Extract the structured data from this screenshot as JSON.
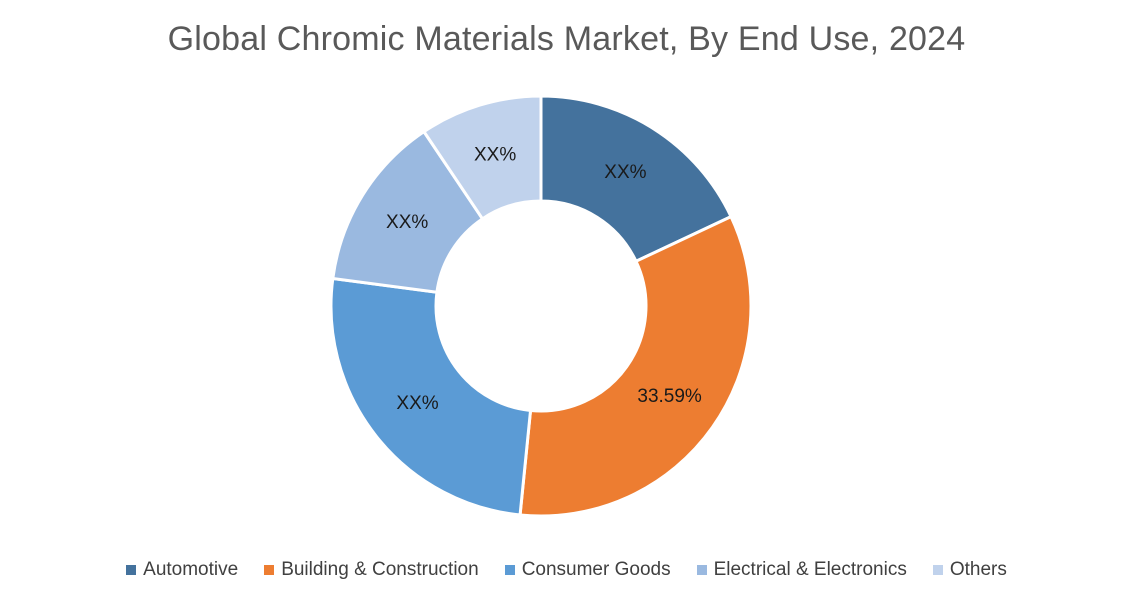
{
  "chart_data": {
    "type": "pie",
    "style": "donut",
    "title": "Global Chromic Materials Market, By End Use, 2024",
    "legend_position": "bottom",
    "slices": [
      {
        "label": "Automotive",
        "value": 18.0,
        "data_label": "XX%",
        "color": "#44729D"
      },
      {
        "label": "Building & Construction",
        "value": 33.59,
        "data_label": "33.59%",
        "color": "#ED7D31"
      },
      {
        "label": "Consumer Goods",
        "value": 25.5,
        "data_label": "XX%",
        "color": "#5B9BD5"
      },
      {
        "label": "Electrical & Electronics",
        "value": 13.5,
        "data_label": "XX%",
        "color": "#9AB9E0"
      },
      {
        "label": "Others",
        "value": 9.41,
        "data_label": "XX%",
        "color": "#C0D2EC"
      }
    ]
  }
}
